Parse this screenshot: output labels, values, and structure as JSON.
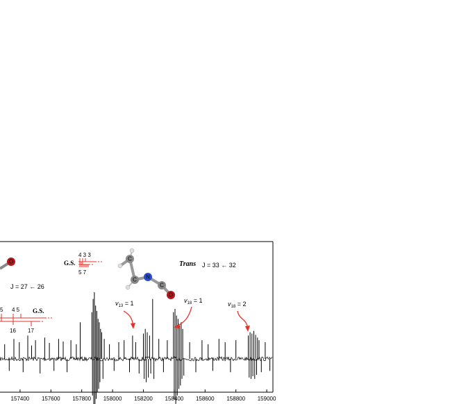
{
  "chart_data": {
    "type": "line",
    "title": "",
    "xlabel": "",
    "ylabel": "",
    "xlim": [
      157270,
      159040
    ],
    "x_ticks": [
      157400,
      157600,
      157800,
      158000,
      158200,
      158400,
      158600,
      158800,
      159000
    ],
    "x_tick_labels": [
      "157400",
      "157600",
      "157800",
      "158000",
      "158200",
      "158400",
      "158600",
      "158800",
      "159000"
    ],
    "series": [
      {
        "peaks": [
          [
            157300,
            0.22
          ],
          [
            157330,
            -0.18
          ],
          [
            157360,
            0.3
          ],
          [
            157395,
            0.25
          ],
          [
            157420,
            -0.2
          ],
          [
            157450,
            0.35
          ],
          [
            157475,
            0.2
          ],
          [
            157500,
            0.28
          ],
          [
            157530,
            -0.22
          ],
          [
            157560,
            0.32
          ],
          [
            157590,
            0.24
          ],
          [
            157620,
            -0.18
          ],
          [
            157650,
            0.3
          ],
          [
            157680,
            0.26
          ],
          [
            157705,
            -0.2
          ],
          [
            157730,
            0.28
          ],
          [
            157765,
            0.22
          ],
          [
            157790,
            0.55
          ],
          [
            157866,
            0.7
          ],
          [
            157870,
            -0.55
          ],
          [
            157874,
            0.9
          ],
          [
            157878,
            -0.7
          ],
          [
            157882,
            1.0
          ],
          [
            157886,
            -0.85
          ],
          [
            157890,
            0.8
          ],
          [
            157894,
            -0.6
          ],
          [
            157898,
            0.72
          ],
          [
            157902,
            -0.5
          ],
          [
            157906,
            0.6
          ],
          [
            157910,
            -0.45
          ],
          [
            157914,
            0.55
          ],
          [
            157918,
            -0.35
          ],
          [
            157922,
            0.45
          ],
          [
            157930,
            0.4
          ],
          [
            157938,
            -0.3
          ],
          [
            157946,
            0.3
          ],
          [
            157980,
            0.22
          ],
          [
            158010,
            -0.18
          ],
          [
            158040,
            0.25
          ],
          [
            158075,
            0.28
          ],
          [
            158110,
            -0.2
          ],
          [
            158130,
            0.35
          ],
          [
            158150,
            0.25
          ],
          [
            158172,
            -0.22
          ],
          [
            158200,
            0.38
          ],
          [
            158205,
            -0.3
          ],
          [
            158212,
            0.45
          ],
          [
            158218,
            -0.35
          ],
          [
            158225,
            0.4
          ],
          [
            158232,
            -0.28
          ],
          [
            158240,
            0.35
          ],
          [
            158248,
            -0.22
          ],
          [
            158260,
            0.9
          ],
          [
            158268,
            -0.3
          ],
          [
            158300,
            0.3
          ],
          [
            158330,
            -0.2
          ],
          [
            158355,
            0.28
          ],
          [
            158395,
            0.7
          ],
          [
            158400,
            -0.6
          ],
          [
            158405,
            0.75
          ],
          [
            158410,
            -0.7
          ],
          [
            158415,
            0.65
          ],
          [
            158420,
            -0.55
          ],
          [
            158425,
            0.6
          ],
          [
            158430,
            -0.45
          ],
          [
            158435,
            0.5
          ],
          [
            158440,
            -0.4
          ],
          [
            158445,
            0.55
          ],
          [
            158450,
            -0.3
          ],
          [
            158455,
            0.45
          ],
          [
            158462,
            -0.25
          ],
          [
            158500,
            0.25
          ],
          [
            158540,
            -0.2
          ],
          [
            158580,
            0.28
          ],
          [
            158620,
            0.22
          ],
          [
            158650,
            -0.18
          ],
          [
            158690,
            0.3
          ],
          [
            158730,
            0.25
          ],
          [
            158765,
            -0.2
          ],
          [
            158800,
            0.28
          ],
          [
            158880,
            0.35
          ],
          [
            158886,
            -0.28
          ],
          [
            158892,
            0.4
          ],
          [
            158898,
            -0.3
          ],
          [
            158904,
            0.38
          ],
          [
            158910,
            -0.26
          ],
          [
            158916,
            0.42
          ],
          [
            158922,
            -0.3
          ],
          [
            158928,
            0.36
          ],
          [
            158934,
            -0.24
          ],
          [
            158940,
            0.32
          ],
          [
            158950,
            0.28
          ],
          [
            158965,
            -0.2
          ],
          [
            158990,
            0.25
          ],
          [
            159020,
            -0.18
          ]
        ]
      }
    ]
  },
  "annotations": {
    "trans_label": "Trans",
    "j_right": "J = 33 ← 32",
    "j_left": "J = 27 ← 26",
    "gs_top": "G.S.",
    "gs_top_numbers": "4 3 3",
    "gs_top_sub": "5 7",
    "gs_left": "G.S.",
    "left_numbers": "4  5",
    "left_sub_16": "16",
    "left_sub_17": "17",
    "left_partial_5": "5",
    "v13": "v13 = 1",
    "v18a": "v18 = 1",
    "v18b": "v18 = 2",
    "atom_c1": "C",
    "atom_c2": "C",
    "atom_n": "N",
    "atom_c3": "C",
    "atom_o": "O"
  },
  "colors": {
    "axis": "#000000",
    "spectrum": "#000000",
    "red": "#e8302a",
    "atom_o": "#b3191a",
    "atom_n": "#2a4ec9",
    "atom_c": "#8a8a8a",
    "atom_h": "#e0e0e0"
  }
}
